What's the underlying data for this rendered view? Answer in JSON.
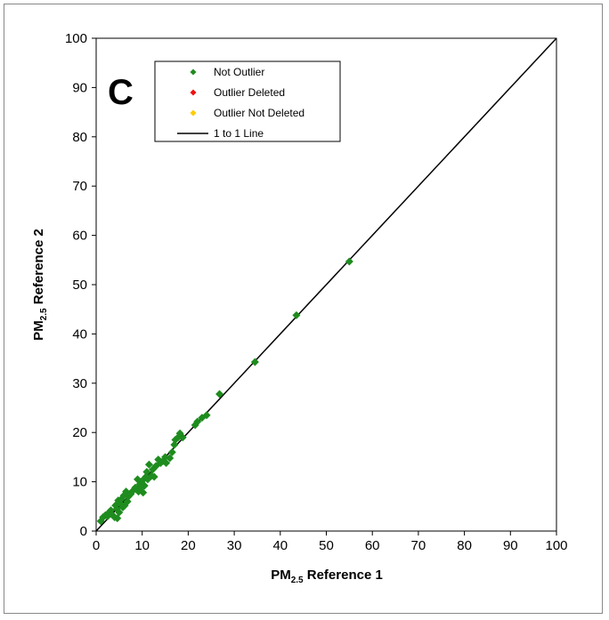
{
  "chart_data": {
    "type": "scatter",
    "panel_label": "C",
    "xlabel": {
      "main": "PM",
      "sub": "2.5",
      "rest": " Reference 1"
    },
    "ylabel": {
      "main": "PM",
      "sub": "2.5",
      "rest": " Reference 2"
    },
    "xlim": [
      0,
      100
    ],
    "ylim": [
      0,
      100
    ],
    "xticks": [
      "0",
      "10",
      "20",
      "30",
      "40",
      "50",
      "60",
      "70",
      "80",
      "90",
      "100"
    ],
    "yticks": [
      "0",
      "10",
      "20",
      "30",
      "40",
      "50",
      "60",
      "70",
      "80",
      "90",
      "100"
    ],
    "grid": false,
    "legend": {
      "position": "top-left",
      "entries": [
        {
          "label": "Not Outlier",
          "marker": "diamond",
          "color": "#1e8c1e"
        },
        {
          "label": "Outlier Deleted",
          "marker": "diamond",
          "color": "#ee1111"
        },
        {
          "label": "Outlier Not Deleted",
          "marker": "diamond",
          "color": "#ffcc00"
        },
        {
          "label": "1 to 1 Line",
          "marker": "line",
          "color": "#000000"
        }
      ]
    },
    "series": [
      {
        "name": "Not Outlier",
        "color": "#1e8c1e",
        "points": [
          [
            1.0,
            2.0
          ],
          [
            1.5,
            2.8
          ],
          [
            2.0,
            3.2
          ],
          [
            2.5,
            3.0
          ],
          [
            2.8,
            3.8
          ],
          [
            3.2,
            4.2
          ],
          [
            3.5,
            3.3
          ],
          [
            4.0,
            2.8
          ],
          [
            4.2,
            5.2
          ],
          [
            4.5,
            4.5
          ],
          [
            4.6,
            2.6
          ],
          [
            4.8,
            6.2
          ],
          [
            5.0,
            3.8
          ],
          [
            5.2,
            5.6
          ],
          [
            5.5,
            6.5
          ],
          [
            5.8,
            4.8
          ],
          [
            6.0,
            7.2
          ],
          [
            6.2,
            5.2
          ],
          [
            6.5,
            8.0
          ],
          [
            6.8,
            6.0
          ],
          [
            7.0,
            7.0
          ],
          [
            7.5,
            7.5
          ],
          [
            8.0,
            8.2
          ],
          [
            8.5,
            8.8
          ],
          [
            9.0,
            10.5
          ],
          [
            9.2,
            8.0
          ],
          [
            9.5,
            9.5
          ],
          [
            9.8,
            8.8
          ],
          [
            10.0,
            10.2
          ],
          [
            10.2,
            7.8
          ],
          [
            10.5,
            9.2
          ],
          [
            10.8,
            11.0
          ],
          [
            11.0,
            12.0
          ],
          [
            11.2,
            10.5
          ],
          [
            11.5,
            13.5
          ],
          [
            12.0,
            11.2
          ],
          [
            12.3,
            12.5
          ],
          [
            12.6,
            11.0
          ],
          [
            13.0,
            13.2
          ],
          [
            13.5,
            14.5
          ],
          [
            14.0,
            13.8
          ],
          [
            14.5,
            14.2
          ],
          [
            15.0,
            15.0
          ],
          [
            15.2,
            13.8
          ],
          [
            16.0,
            14.8
          ],
          [
            16.5,
            16.0
          ],
          [
            17.0,
            17.5
          ],
          [
            17.2,
            18.5
          ],
          [
            17.8,
            19.0
          ],
          [
            18.2,
            19.8
          ],
          [
            18.8,
            19.0
          ],
          [
            21.5,
            21.5
          ],
          [
            22.0,
            22.2
          ],
          [
            23.0,
            23.0
          ],
          [
            24.0,
            23.5
          ],
          [
            26.8,
            27.8
          ],
          [
            34.5,
            34.3
          ],
          [
            43.5,
            43.8
          ],
          [
            55.0,
            54.7
          ]
        ]
      },
      {
        "name": "Outlier Deleted",
        "color": "#ee1111",
        "points": []
      },
      {
        "name": "Outlier Not Deleted",
        "color": "#ffcc00",
        "points": []
      }
    ],
    "reference_line": {
      "name": "1 to 1 Line",
      "from": [
        0,
        0
      ],
      "to": [
        100,
        100
      ],
      "color": "#000000"
    }
  }
}
